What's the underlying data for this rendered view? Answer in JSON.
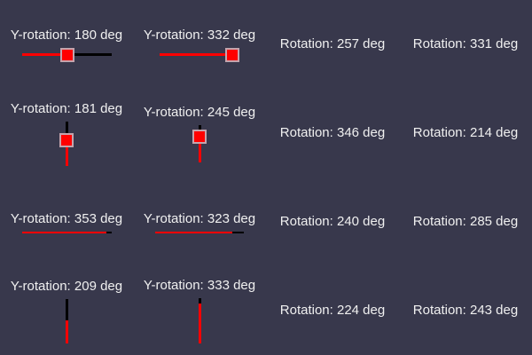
{
  "colors": {
    "background": "#38384c",
    "text": "#f0f0f0",
    "track_red": "#ff0000",
    "track_black": "#000000",
    "handle_fill": "#ff0000",
    "handle_border": "#c4a4ad"
  },
  "cells": [
    {
      "label": "Y-rotation: 180 deg",
      "axis": "Y-rotation",
      "value_deg": 180,
      "widget": {
        "orientation": "horizontal",
        "thickness": 3,
        "parts": [
          {
            "kind": "line",
            "color": "#ff0000",
            "length": 43
          },
          {
            "kind": "handle",
            "size": 16
          },
          {
            "kind": "line",
            "color": "#000000",
            "length": 42
          }
        ]
      }
    },
    {
      "label": "Y-rotation: 332 deg",
      "axis": "Y-rotation",
      "value_deg": 332,
      "widget": {
        "orientation": "horizontal",
        "thickness": 3,
        "parts": [
          {
            "kind": "line",
            "color": "#ff0000",
            "length": 74
          },
          {
            "kind": "handle",
            "size": 16
          }
        ]
      }
    },
    {
      "label": "Rotation: 257 deg",
      "axis": "Rotation",
      "value_deg": 257,
      "widget": null
    },
    {
      "label": "Rotation: 331 deg",
      "axis": "Rotation",
      "value_deg": 331,
      "widget": null
    },
    {
      "label": "Y-rotation: 181 deg",
      "axis": "Y-rotation",
      "value_deg": 181,
      "widget": {
        "orientation": "vertical",
        "thickness": 3,
        "parts": [
          {
            "kind": "line",
            "color": "#000000",
            "length": 13
          },
          {
            "kind": "handle",
            "size": 16
          },
          {
            "kind": "line",
            "color": "#ff0000",
            "length": 21
          }
        ]
      }
    },
    {
      "label": "Y-rotation: 245 deg",
      "axis": "Y-rotation",
      "value_deg": 245,
      "widget": {
        "orientation": "vertical",
        "thickness": 3,
        "parts": [
          {
            "kind": "line",
            "color": "#000000",
            "length": 5
          },
          {
            "kind": "handle",
            "size": 16
          },
          {
            "kind": "line",
            "color": "#ff0000",
            "length": 21
          }
        ]
      }
    },
    {
      "label": "Rotation: 346 deg",
      "axis": "Rotation",
      "value_deg": 346,
      "widget": null
    },
    {
      "label": "Rotation: 214 deg",
      "axis": "Rotation",
      "value_deg": 214,
      "widget": null
    },
    {
      "label": "Y-rotation: 353 deg",
      "axis": "Y-rotation",
      "value_deg": 353,
      "widget": {
        "orientation": "horizontal",
        "thickness": 2,
        "parts": [
          {
            "kind": "line",
            "color": "#ff0000",
            "length": 95
          },
          {
            "kind": "line",
            "color": "#000000",
            "length": 6
          }
        ]
      }
    },
    {
      "label": "Y-rotation: 323 deg",
      "axis": "Y-rotation",
      "value_deg": 323,
      "widget": {
        "orientation": "horizontal",
        "thickness": 2,
        "parts": [
          {
            "kind": "line",
            "color": "#ff0000",
            "length": 87
          },
          {
            "kind": "line",
            "color": "#000000",
            "length": 13
          }
        ]
      }
    },
    {
      "label": "Rotation: 240 deg",
      "axis": "Rotation",
      "value_deg": 240,
      "widget": null
    },
    {
      "label": "Rotation: 285 deg",
      "axis": "Rotation",
      "value_deg": 285,
      "widget": null
    },
    {
      "label": "Y-rotation: 209 deg",
      "axis": "Y-rotation",
      "value_deg": 209,
      "widget": {
        "orientation": "vertical",
        "thickness": 3,
        "parts": [
          {
            "kind": "line",
            "color": "#000000",
            "length": 24
          },
          {
            "kind": "line",
            "color": "#ff0000",
            "length": 26
          }
        ]
      }
    },
    {
      "label": "Y-rotation: 333 deg",
      "axis": "Y-rotation",
      "value_deg": 333,
      "widget": {
        "orientation": "vertical",
        "thickness": 3,
        "parts": [
          {
            "kind": "line",
            "color": "#000000",
            "length": 6
          },
          {
            "kind": "line",
            "color": "#ff0000",
            "length": 45
          }
        ]
      }
    },
    {
      "label": "Rotation: 224 deg",
      "axis": "Rotation",
      "value_deg": 224,
      "widget": null
    },
    {
      "label": "Rotation: 243 deg",
      "axis": "Rotation",
      "value_deg": 243,
      "widget": null
    }
  ]
}
